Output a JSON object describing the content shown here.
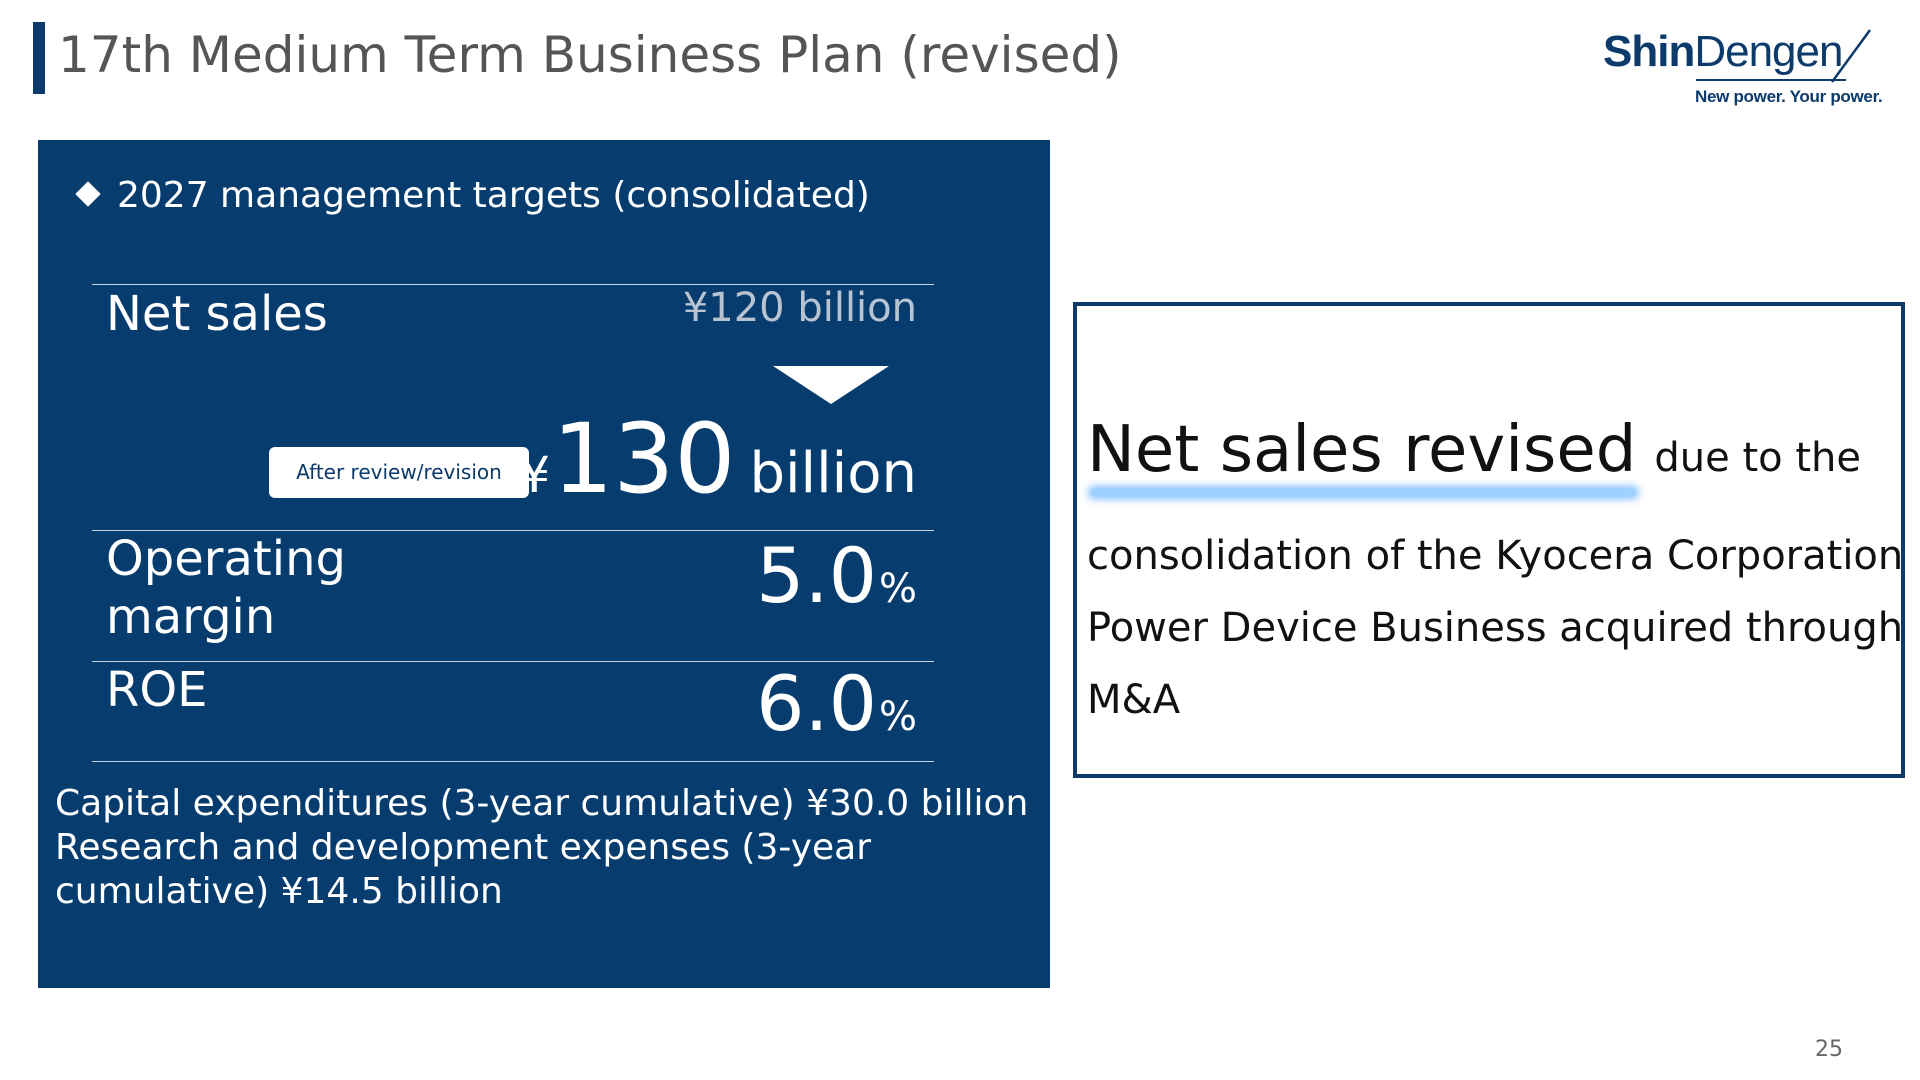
{
  "header": {
    "title": "17th Medium Term Business Plan (revised)"
  },
  "logo": {
    "word_bold": "Shin",
    "word_regular": "Dengen",
    "tagline": "New power. Your power.",
    "color": "#0b3a6b"
  },
  "targets": {
    "heading": "2027 management targets (consolidated)",
    "net_sales": {
      "label": "Net sales",
      "old_value": "¥120 billion",
      "revision_badge": "After review/revision",
      "new_currency": "¥",
      "new_number": "130",
      "new_unit": "billion"
    },
    "operating_margin": {
      "label_line1": "Operating",
      "label_line2": "margin",
      "value": "5.0",
      "unit": "%"
    },
    "roe": {
      "label": "ROE",
      "value": "6.0",
      "unit": "%"
    },
    "capex_line1": "Capital expenditures (3-year cumulative)  ¥30.0 billion",
    "rnd_line1": "Research and development expenses (3-year",
    "rnd_line2": "cumulative)  ¥14.5 billion",
    "panel_color": "#063c6e"
  },
  "note": {
    "emphasis": "Net sales revised",
    "rest_first_line": "due to the",
    "line2": "consolidation of the Kyocera Corporation",
    "line3": "Power Device Business acquired through",
    "line4": "M&A",
    "border_color": "#0b3a6b",
    "highlight_color": "#9fd0ff"
  },
  "footer": {
    "page_number": "25"
  }
}
